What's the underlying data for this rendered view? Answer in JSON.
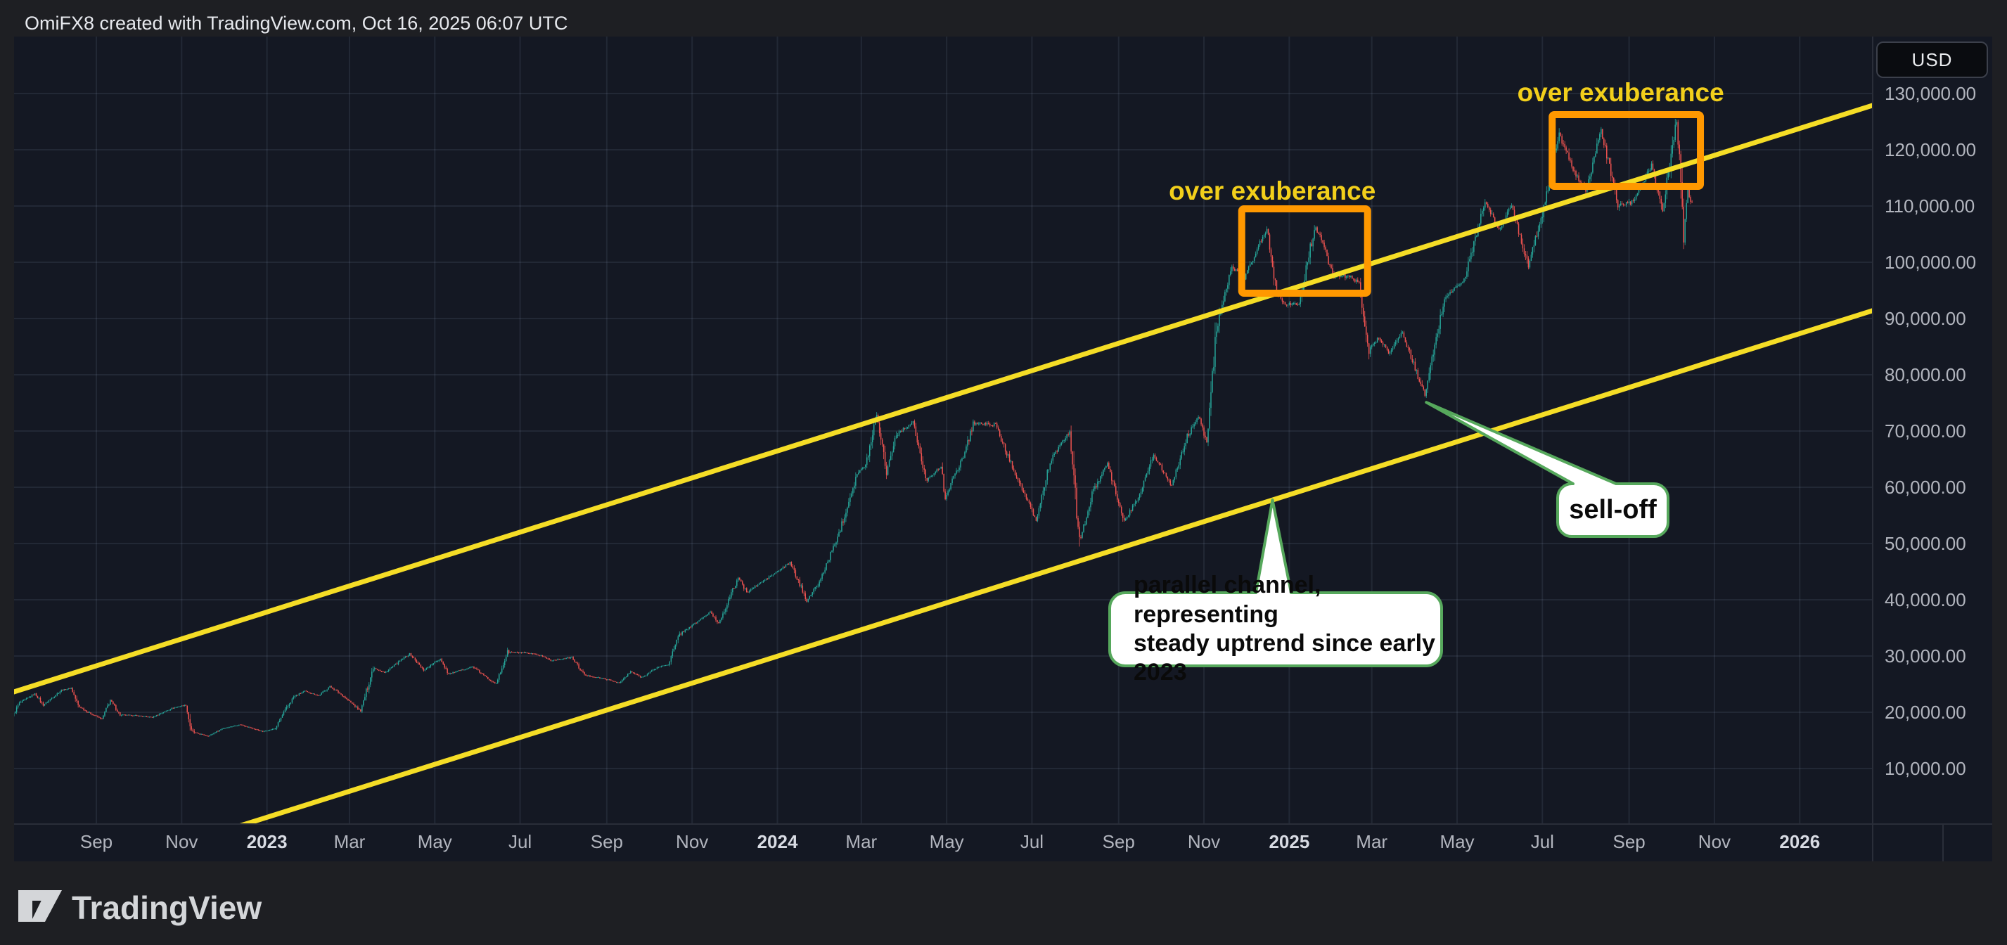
{
  "header": {
    "attribution": "OmiFX8 created with TradingView.com, Oct 16, 2025 06:07 UTC"
  },
  "footer": {
    "brand": "TradingView"
  },
  "price_axis": {
    "currency_button": "USD",
    "ticks": [
      {
        "price": 130000,
        "label": "130,000.00"
      },
      {
        "price": 120000,
        "label": "120,000.00"
      },
      {
        "price": 110000,
        "label": "110,000.00"
      },
      {
        "price": 100000,
        "label": "100,000.00"
      },
      {
        "price": 90000,
        "label": "90,000.00"
      },
      {
        "price": 80000,
        "label": "80,000.00"
      },
      {
        "price": 70000,
        "label": "70,000.00"
      },
      {
        "price": 60000,
        "label": "60,000.00"
      },
      {
        "price": 50000,
        "label": "50,000.00"
      },
      {
        "price": 40000,
        "label": "40,000.00"
      },
      {
        "price": 30000,
        "label": "30,000.00"
      },
      {
        "price": 20000,
        "label": "20,000.00"
      },
      {
        "price": 10000,
        "label": "10,000.00"
      }
    ]
  },
  "time_axis": {
    "ticks": [
      {
        "label": "Sep",
        "date": "2022-09-01",
        "bold": false
      },
      {
        "label": "Nov",
        "date": "2022-11-01",
        "bold": false
      },
      {
        "label": "2023",
        "date": "2023-01-01",
        "bold": true
      },
      {
        "label": "Mar",
        "date": "2023-03-01",
        "bold": false
      },
      {
        "label": "May",
        "date": "2023-05-01",
        "bold": false
      },
      {
        "label": "Jul",
        "date": "2023-07-01",
        "bold": false
      },
      {
        "label": "Sep",
        "date": "2023-09-01",
        "bold": false
      },
      {
        "label": "Nov",
        "date": "2023-11-01",
        "bold": false
      },
      {
        "label": "2024",
        "date": "2024-01-01",
        "bold": true
      },
      {
        "label": "Mar",
        "date": "2024-03-01",
        "bold": false
      },
      {
        "label": "May",
        "date": "2024-05-01",
        "bold": false
      },
      {
        "label": "Jul",
        "date": "2024-07-01",
        "bold": false
      },
      {
        "label": "Sep",
        "date": "2024-09-01",
        "bold": false
      },
      {
        "label": "Nov",
        "date": "2024-11-01",
        "bold": false
      },
      {
        "label": "2025",
        "date": "2025-01-01",
        "bold": true
      },
      {
        "label": "Mar",
        "date": "2025-03-01",
        "bold": false
      },
      {
        "label": "May",
        "date": "2025-05-01",
        "bold": false
      },
      {
        "label": "Jul",
        "date": "2025-07-01",
        "bold": false
      },
      {
        "label": "Sep",
        "date": "2025-09-01",
        "bold": false
      },
      {
        "label": "Nov",
        "date": "2025-11-01",
        "bold": false
      },
      {
        "label": "2026",
        "date": "2026-01-01",
        "bold": true
      }
    ]
  },
  "annotations": {
    "exuberance_label_1": "over exuberance",
    "exuberance_label_2": "over exuberance",
    "sell_off": "sell-off",
    "channel_note_line1": "parallel channel, representing",
    "channel_note_line2": "steady uptrend since early 2023"
  },
  "chart_data": {
    "type": "candlestick",
    "quote_currency": "USD",
    "grid": true,
    "y_axis": {
      "visible_min": 125,
      "visible_max": 140125,
      "gridline_step": 10000
    },
    "x_axis": {
      "first_candle": "2022-07-04",
      "last_candle": "2025-10-16",
      "right_edge_date": "2026-02-22"
    },
    "colors": {
      "up": "#26a69a",
      "down": "#ef5350",
      "channel": "#f5dd26",
      "box": "#ff9800",
      "callout_border": "#56a85c",
      "label_yellow": "#f2cf1b",
      "background": "#141823"
    },
    "price_path_anchors": [
      [
        "2022-07-04",
        19300
      ],
      [
        "2022-07-09",
        21600
      ],
      [
        "2022-07-20",
        23300
      ],
      [
        "2022-07-26",
        21300
      ],
      [
        "2022-08-08",
        23900
      ],
      [
        "2022-08-15",
        24300
      ],
      [
        "2022-08-20",
        21200
      ],
      [
        "2022-08-27",
        20000
      ],
      [
        "2022-09-06",
        18800
      ],
      [
        "2022-09-12",
        22200
      ],
      [
        "2022-09-19",
        19500
      ],
      [
        "2022-09-30",
        19400
      ],
      [
        "2022-10-12",
        19100
      ],
      [
        "2022-10-26",
        20700
      ],
      [
        "2022-11-05",
        21300
      ],
      [
        "2022-11-09",
        16500
      ],
      [
        "2022-11-21",
        15760
      ],
      [
        "2022-12-01",
        17100
      ],
      [
        "2022-12-14",
        17800
      ],
      [
        "2022-12-30",
        16550
      ],
      [
        "2023-01-08",
        17100
      ],
      [
        "2023-01-14",
        19900
      ],
      [
        "2023-01-21",
        22700
      ],
      [
        "2023-01-29",
        23750
      ],
      [
        "2023-02-08",
        22950
      ],
      [
        "2023-02-16",
        24600
      ],
      [
        "2023-02-25",
        23000
      ],
      [
        "2023-03-10",
        20200
      ],
      [
        "2023-03-19",
        28000
      ],
      [
        "2023-03-27",
        27000
      ],
      [
        "2023-04-14",
        30400
      ],
      [
        "2023-04-24",
        27500
      ],
      [
        "2023-05-06",
        29500
      ],
      [
        "2023-05-12",
        26800
      ],
      [
        "2023-05-29",
        28100
      ],
      [
        "2023-06-10",
        25800
      ],
      [
        "2023-06-15",
        25100
      ],
      [
        "2023-06-23",
        30700
      ],
      [
        "2023-07-06",
        30500
      ],
      [
        "2023-07-17",
        30100
      ],
      [
        "2023-07-24",
        29200
      ],
      [
        "2023-08-08",
        29750
      ],
      [
        "2023-08-17",
        26600
      ],
      [
        "2023-09-01",
        25900
      ],
      [
        "2023-09-11",
        25200
      ],
      [
        "2023-09-19",
        27200
      ],
      [
        "2023-09-27",
        26200
      ],
      [
        "2023-10-08",
        27950
      ],
      [
        "2023-10-16",
        28500
      ],
      [
        "2023-10-24",
        33900
      ],
      [
        "2023-11-02",
        35400
      ],
      [
        "2023-11-09",
        36700
      ],
      [
        "2023-11-15",
        37800
      ],
      [
        "2023-11-21",
        35800
      ],
      [
        "2023-12-05",
        44000
      ],
      [
        "2023-12-11",
        41300
      ],
      [
        "2023-12-19",
        42700
      ],
      [
        "2024-01-02",
        45000
      ],
      [
        "2024-01-11",
        46600
      ],
      [
        "2024-01-23",
        39900
      ],
      [
        "2024-02-01",
        43100
      ],
      [
        "2024-02-15",
        51800
      ],
      [
        "2024-02-28",
        62500
      ],
      [
        "2024-03-05",
        63800
      ],
      [
        "2024-03-13",
        73100
      ],
      [
        "2024-03-20",
        62800
      ],
      [
        "2024-03-27",
        69400
      ],
      [
        "2024-04-08",
        71600
      ],
      [
        "2024-04-17",
        61300
      ],
      [
        "2024-04-28",
        63600
      ],
      [
        "2024-05-01",
        58300
      ],
      [
        "2024-05-15",
        66200
      ],
      [
        "2024-05-21",
        71400
      ],
      [
        "2024-06-06",
        71100
      ],
      [
        "2024-06-14",
        66000
      ],
      [
        "2024-06-24",
        60300
      ],
      [
        "2024-07-05",
        54000
      ],
      [
        "2024-07-15",
        64700
      ],
      [
        "2024-07-29",
        69900
      ],
      [
        "2024-08-05",
        50000
      ],
      [
        "2024-08-14",
        58800
      ],
      [
        "2024-08-25",
        64200
      ],
      [
        "2024-09-06",
        53900
      ],
      [
        "2024-09-16",
        58200
      ],
      [
        "2024-09-27",
        65800
      ],
      [
        "2024-10-10",
        60300
      ],
      [
        "2024-10-21",
        69000
      ],
      [
        "2024-10-29",
        72700
      ],
      [
        "2024-11-04",
        68200
      ],
      [
        "2024-11-11",
        88700
      ],
      [
        "2024-11-22",
        99000
      ],
      [
        "2024-12-01",
        97300
      ],
      [
        "2024-12-08",
        101200
      ],
      [
        "2024-12-17",
        106100
      ],
      [
        "2024-12-24",
        94900
      ],
      [
        "2024-12-30",
        92600
      ],
      [
        "2025-01-09",
        92500
      ],
      [
        "2025-01-20",
        106200
      ],
      [
        "2025-01-24",
        104800
      ],
      [
        "2025-02-02",
        97700
      ],
      [
        "2025-02-14",
        97500
      ],
      [
        "2025-02-21",
        96200
      ],
      [
        "2025-02-28",
        84300
      ],
      [
        "2025-03-07",
        86700
      ],
      [
        "2025-03-14",
        83900
      ],
      [
        "2025-03-24",
        87500
      ],
      [
        "2025-03-31",
        82500
      ],
      [
        "2025-04-09",
        76300
      ],
      [
        "2025-04-23",
        93700
      ],
      [
        "2025-05-07",
        96800
      ],
      [
        "2025-05-22",
        110800
      ],
      [
        "2025-06-01",
        105600
      ],
      [
        "2025-06-10",
        110200
      ],
      [
        "2025-06-22",
        99400
      ],
      [
        "2025-07-03",
        109600
      ],
      [
        "2025-07-14",
        122800
      ],
      [
        "2025-07-25",
        115800
      ],
      [
        "2025-08-02",
        112800
      ],
      [
        "2025-08-13",
        123400
      ],
      [
        "2025-08-25",
        110100
      ],
      [
        "2025-09-05",
        110700
      ],
      [
        "2025-09-18",
        117400
      ],
      [
        "2025-09-26",
        109200
      ],
      [
        "2025-10-06",
        125100
      ],
      [
        "2025-10-10",
        111000
      ],
      [
        "2025-10-11",
        105200
      ],
      [
        "2025-10-14",
        113100
      ],
      [
        "2025-10-16",
        110600
      ]
    ],
    "channel": {
      "upper": [
        [
          "2022-07-04",
          23625
        ],
        [
          "2026-02-22",
          127875
        ]
      ],
      "lower": [
        [
          "2022-07-04",
          -12875
        ],
        [
          "2026-02-22",
          91400
        ]
      ]
    },
    "boxes": [
      {
        "label": "over exuberance",
        "from": "2024-11-28",
        "to": "2025-02-26",
        "price_top": 109500,
        "price_bottom": 94500
      },
      {
        "label": "over exuberance",
        "from": "2025-07-08",
        "to": "2025-10-22",
        "price_top": 126250,
        "price_bottom": 113500
      }
    ],
    "callouts": [
      {
        "text": "sell-off",
        "target_date": "2025-04-09",
        "target_price": 75100
      },
      {
        "text": "parallel channel, representing steady uptrend since early 2023",
        "target_date": "2024-12-20",
        "target_price": 57750
      }
    ]
  }
}
